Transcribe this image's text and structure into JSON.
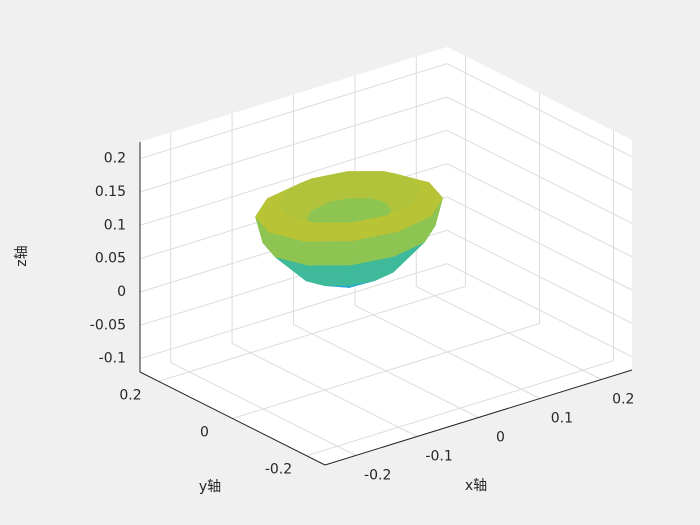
{
  "chart_data": {
    "type": "surface3d",
    "xlabel": "x轴",
    "ylabel": "y轴",
    "zlabel": "z轴",
    "xlim": [
      -0.25,
      0.25
    ],
    "ylim": [
      -0.25,
      0.25
    ],
    "zlim": [
      -0.12,
      0.225
    ],
    "xticks": [
      -0.2,
      -0.1,
      0,
      0.1,
      0.2
    ],
    "yticks": [
      -0.2,
      0,
      0.2
    ],
    "zticks": [
      -0.1,
      -0.05,
      0,
      0.05,
      0.1,
      0.15,
      0.2
    ],
    "grid": true,
    "colormap": [
      "#1e9fe3",
      "#2cb7ad",
      "#7fc55b",
      "#c4c22e"
    ],
    "x": [
      [
        -0.03,
        -0.03,
        -0.03,
        -0.03,
        -0.03,
        -0.03,
        -0.03,
        -0.03,
        -0.03,
        -0.03,
        -0.03,
        -0.03
      ],
      [
        0.04,
        0.031,
        0.005,
        -0.03,
        -0.065,
        -0.091,
        -0.1,
        -0.091,
        -0.065,
        -0.03,
        0.005,
        0.031
      ],
      [
        0.09,
        0.074,
        0.03,
        -0.03,
        -0.09,
        -0.134,
        -0.15,
        -0.134,
        -0.09,
        -0.03,
        0.03,
        0.074
      ],
      [
        0.1,
        0.083,
        0.035,
        -0.03,
        -0.095,
        -0.143,
        -0.16,
        -0.143,
        -0.095,
        -0.03,
        0.035,
        0.083
      ],
      [
        0.07,
        0.057,
        0.02,
        -0.03,
        -0.08,
        -0.117,
        -0.13,
        -0.117,
        -0.08,
        -0.03,
        0.02,
        0.057
      ],
      [
        0.03,
        0.022,
        0,
        -0.03,
        -0.06,
        -0.082,
        -0.09,
        -0.082,
        -0.06,
        -0.03,
        0,
        0.022
      ],
      [
        -0.03,
        -0.03,
        -0.03,
        -0.03,
        -0.03,
        -0.03,
        -0.03,
        -0.03,
        -0.03,
        -0.03,
        -0.03,
        -0.03
      ]
    ],
    "y": [
      [
        0.05,
        0.05,
        0.05,
        0.05,
        0.05,
        0.05,
        0.05,
        0.05,
        0.05,
        0.05,
        0.05,
        0.05
      ],
      [
        0.05,
        0.085,
        0.111,
        0.12,
        0.111,
        0.085,
        0.05,
        0.015,
        -0.011,
        -0.02,
        -0.011,
        0.015
      ],
      [
        0.05,
        0.11,
        0.154,
        0.17,
        0.154,
        0.11,
        0.05,
        -0.01,
        -0.054,
        -0.07,
        -0.054,
        -0.01
      ],
      [
        0.05,
        0.115,
        0.163,
        0.18,
        0.163,
        0.115,
        0.05,
        -0.015,
        -0.063,
        -0.08,
        -0.063,
        -0.015
      ],
      [
        0.05,
        0.1,
        0.137,
        0.15,
        0.137,
        0.1,
        0.05,
        0,
        -0.037,
        -0.05,
        -0.037,
        0
      ],
      [
        0.05,
        0.08,
        0.102,
        0.11,
        0.102,
        0.08,
        0.05,
        0.02,
        -0.002,
        -0.01,
        -0.002,
        0.02
      ],
      [
        0.05,
        0.05,
        0.05,
        0.05,
        0.05,
        0.05,
        0.05,
        0.05,
        0.05,
        0.05,
        0.05,
        0.05
      ]
    ],
    "z": [
      [
        0,
        0,
        0,
        0,
        0,
        0,
        0,
        0,
        0,
        0,
        0,
        0
      ],
      [
        0.03,
        0.03,
        0.03,
        0.03,
        0.03,
        0.03,
        0.03,
        0.03,
        0.03,
        0.03,
        0.03,
        0.03
      ],
      [
        0.08,
        0.08,
        0.08,
        0.08,
        0.08,
        0.08,
        0.08,
        0.08,
        0.08,
        0.08,
        0.08,
        0.08
      ],
      [
        0.12,
        0.12,
        0.12,
        0.12,
        0.12,
        0.12,
        0.12,
        0.12,
        0.12,
        0.12,
        0.12,
        0.12
      ],
      [
        0.135,
        0.135,
        0.135,
        0.135,
        0.135,
        0.135,
        0.135,
        0.135,
        0.135,
        0.135,
        0.135,
        0.135
      ],
      [
        0.11,
        0.11,
        0.11,
        0.11,
        0.11,
        0.11,
        0.11,
        0.11,
        0.11,
        0.11,
        0.11,
        0.11
      ],
      [
        0.09,
        0.09,
        0.09,
        0.09,
        0.09,
        0.09,
        0.09,
        0.09,
        0.09,
        0.09,
        0.09,
        0.09
      ]
    ]
  }
}
